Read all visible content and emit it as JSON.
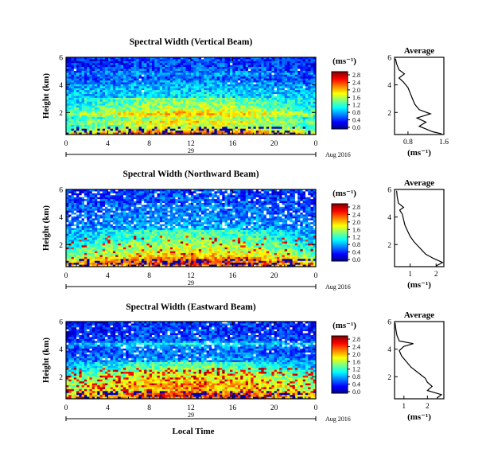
{
  "chart_data": [
    {
      "type": "heatmap",
      "title": "Spectral Width (Vertical Beam)",
      "ylabel": "Height (km)",
      "xlabel": "",
      "x_ticks": [
        "0",
        "4",
        "8",
        "12",
        "16",
        "20",
        "0"
      ],
      "y_ticks": [
        "6",
        "4",
        "2"
      ],
      "date_day": "29",
      "date_label": "Aug 2016",
      "colorbar": {
        "unit": "(ms⁻¹)",
        "ticks": [
          "2.8",
          "2.4",
          "2.0",
          "1.6",
          "1.2",
          "0.8",
          "0.4",
          "0.0"
        ]
      },
      "average": {
        "title": "Average",
        "xlabel": "(ms⁻¹)",
        "x_ticks": [
          "0.8",
          "1.6"
        ],
        "xlim": [
          0.5,
          1.6
        ],
        "y_ticks": [
          "6",
          "4",
          "2"
        ],
        "ylim": [
          0.4,
          6
        ],
        "profile": [
          [
            1.55,
            0.45
          ],
          [
            1.35,
            0.6
          ],
          [
            1.2,
            0.8
          ],
          [
            1.05,
            1.0
          ],
          [
            1.2,
            1.3
          ],
          [
            1.0,
            1.6
          ],
          [
            1.3,
            1.9
          ],
          [
            1.05,
            2.2
          ],
          [
            0.95,
            2.6
          ],
          [
            0.9,
            3.0
          ],
          [
            0.85,
            3.4
          ],
          [
            0.8,
            3.8
          ],
          [
            0.7,
            4.2
          ],
          [
            0.6,
            4.5
          ],
          [
            0.72,
            4.8
          ],
          [
            0.6,
            5.1
          ],
          [
            0.55,
            5.5
          ],
          [
            0.52,
            5.9
          ]
        ]
      }
    },
    {
      "type": "heatmap",
      "title": "Spectral Width (Northward Beam)",
      "ylabel": "Height (km)",
      "xlabel": "",
      "x_ticks": [
        "0",
        "4",
        "8",
        "12",
        "16",
        "20",
        "0"
      ],
      "y_ticks": [
        "6",
        "4",
        "2"
      ],
      "date_day": "29",
      "date_label": "Aug 2016",
      "colorbar": {
        "unit": "(ms⁻¹)",
        "ticks": [
          "2.8",
          "2.4",
          "2.0",
          "1.6",
          "1.2",
          "0.8",
          "0.4",
          "0.0"
        ]
      },
      "average": {
        "title": "Average",
        "xlabel": "(ms⁻¹)",
        "x_ticks": [
          "1",
          "2"
        ],
        "xlim": [
          0.4,
          2.3
        ],
        "y_ticks": [
          "6",
          "4",
          "2"
        ],
        "ylim": [
          0.4,
          6
        ],
        "profile": [
          [
            2.0,
            0.45
          ],
          [
            2.25,
            0.7
          ],
          [
            1.9,
            1.0
          ],
          [
            1.6,
            1.3
          ],
          [
            1.45,
            1.6
          ],
          [
            1.3,
            1.9
          ],
          [
            1.15,
            2.2
          ],
          [
            1.0,
            2.6
          ],
          [
            0.9,
            3.0
          ],
          [
            0.8,
            3.4
          ],
          [
            0.75,
            3.8
          ],
          [
            0.7,
            4.2
          ],
          [
            0.6,
            4.5
          ],
          [
            0.75,
            4.7
          ],
          [
            0.55,
            5.0
          ],
          [
            0.5,
            5.5
          ],
          [
            0.48,
            5.9
          ]
        ]
      }
    },
    {
      "type": "heatmap",
      "title": "Spectral Width (Eastward Beam)",
      "ylabel": "Height (km)",
      "xlabel": "Local Time",
      "x_ticks": [
        "0",
        "4",
        "8",
        "12",
        "16",
        "20",
        "0"
      ],
      "y_ticks": [
        "6",
        "4",
        "2"
      ],
      "date_day": "29",
      "date_label": "Aug 2016",
      "colorbar": {
        "unit": "(ms⁻¹)",
        "ticks": [
          "2.8",
          "2.4",
          "2.0",
          "1.6",
          "1.2",
          "0.8",
          "0.4",
          "0.0"
        ]
      },
      "average": {
        "title": "Average",
        "xlabel": "(ms⁻¹)",
        "x_ticks": [
          "1",
          "2"
        ],
        "xlim": [
          0.6,
          2.7
        ],
        "y_ticks": [
          "6",
          "4",
          "2"
        ],
        "ylim": [
          0.4,
          6
        ],
        "profile": [
          [
            2.4,
            0.45
          ],
          [
            2.6,
            0.7
          ],
          [
            2.0,
            1.0
          ],
          [
            2.2,
            1.3
          ],
          [
            2.0,
            1.6
          ],
          [
            1.9,
            1.9
          ],
          [
            1.6,
            2.3
          ],
          [
            1.3,
            2.7
          ],
          [
            1.1,
            3.1
          ],
          [
            0.9,
            3.5
          ],
          [
            0.8,
            3.9
          ],
          [
            1.0,
            4.2
          ],
          [
            1.4,
            4.4
          ],
          [
            0.8,
            4.6
          ],
          [
            0.7,
            5.0
          ],
          [
            0.65,
            5.5
          ],
          [
            0.62,
            5.9
          ]
        ]
      }
    }
  ]
}
